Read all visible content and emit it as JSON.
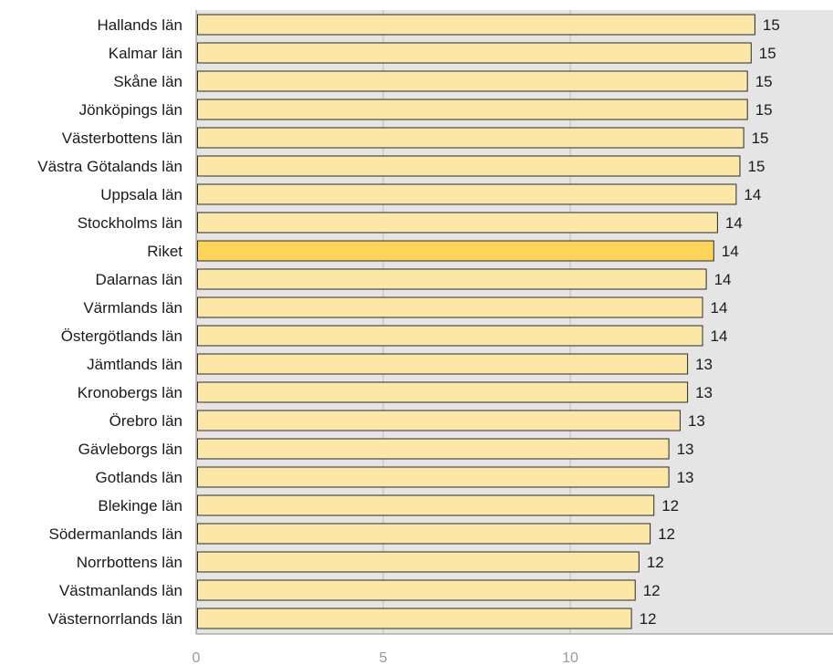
{
  "chart_data": {
    "type": "bar",
    "orientation": "horizontal",
    "categories": [
      "Hallands län",
      "Kalmar län",
      "Skåne län",
      "Jönköpings län",
      "Västerbottens län",
      "Västra Götalands län",
      "Uppsala län",
      "Stockholms län",
      "Riket",
      "Dalarnas län",
      "Värmlands län",
      "Östergötlands län",
      "Jämtlands län",
      "Kronobergs län",
      "Örebro län",
      "Gävleborgs län",
      "Gotlands län",
      "Blekinge län",
      "Södermanlands län",
      "Norrbottens län",
      "Västmanlands län",
      "Västernorrlands län"
    ],
    "values": [
      14.9,
      14.8,
      14.7,
      14.7,
      14.6,
      14.5,
      14.4,
      13.9,
      13.8,
      13.6,
      13.5,
      13.5,
      13.1,
      13.1,
      12.9,
      12.6,
      12.6,
      12.2,
      12.1,
      11.8,
      11.7,
      11.6
    ],
    "value_labels": [
      "15",
      "15",
      "15",
      "15",
      "15",
      "15",
      "14",
      "14",
      "14",
      "14",
      "14",
      "14",
      "13",
      "13",
      "13",
      "13",
      "13",
      "12",
      "12",
      "12",
      "12",
      "12"
    ],
    "highlight_category": "Riket",
    "xlim": [
      0,
      17
    ],
    "xticks": [
      0,
      5,
      10
    ],
    "xtick_labels": [
      "0",
      "5",
      "10"
    ],
    "title": "",
    "xlabel": "",
    "ylabel": "",
    "grid": true,
    "legend": "none",
    "colors": {
      "bar": "#fde7a6",
      "bar_highlight": "#fcd45a",
      "bar_stroke": "#2a2a2a",
      "plot_background": "#e5e5e5",
      "gridline": "#bdbdbd",
      "tick_text": "#9a9a9a",
      "label_text": "#1a1a1a"
    }
  }
}
